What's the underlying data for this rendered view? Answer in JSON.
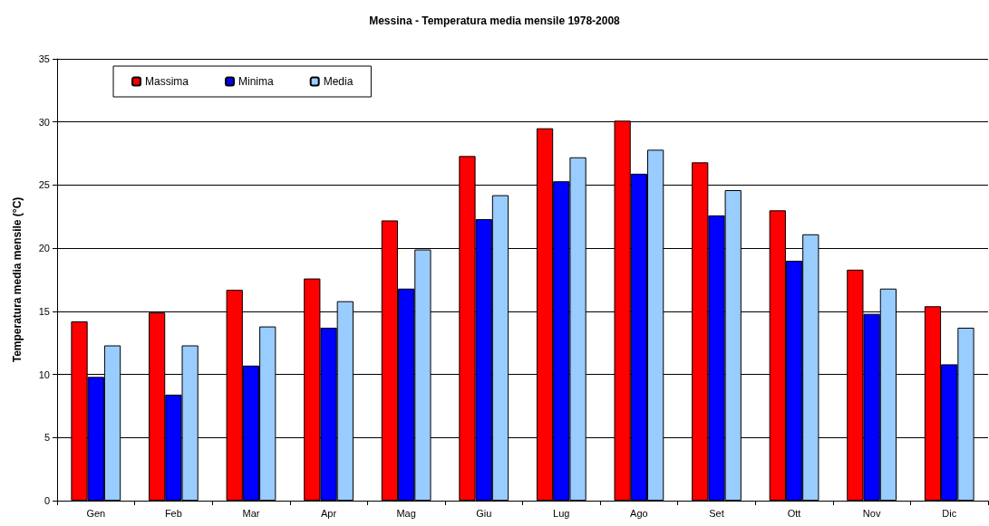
{
  "chart_data": {
    "type": "bar",
    "title": "Messina - Temperatura media mensile 1978-2008",
    "ylabel": "Temperatura media mensile (°C)",
    "categories": [
      "Gen",
      "Feb",
      "Mar",
      "Apr",
      "Mag",
      "Giu",
      "Lug",
      "Ago",
      "Set",
      "Ott",
      "Nov",
      "Dic"
    ],
    "series": [
      {
        "name": "Massima",
        "color": "#ff0000",
        "values": [
          14.2,
          14.9,
          16.7,
          17.6,
          22.2,
          27.3,
          29.5,
          30.1,
          26.8,
          23.0,
          18.3,
          15.4
        ]
      },
      {
        "name": "Minima",
        "color": "#0000ff",
        "values": [
          9.8,
          8.4,
          10.7,
          13.7,
          16.8,
          22.3,
          25.3,
          25.9,
          22.6,
          19.0,
          14.8,
          10.8
        ]
      },
      {
        "name": "Media",
        "color": "#99ccff",
        "values": [
          12.3,
          12.3,
          13.8,
          15.8,
          19.9,
          24.2,
          27.2,
          27.8,
          24.6,
          21.1,
          16.8,
          13.7
        ]
      }
    ],
    "ylim": [
      0,
      35
    ],
    "yticks": [
      0,
      5,
      10,
      15,
      20,
      25,
      30,
      35
    ],
    "grid": "y",
    "legend": "top left"
  }
}
